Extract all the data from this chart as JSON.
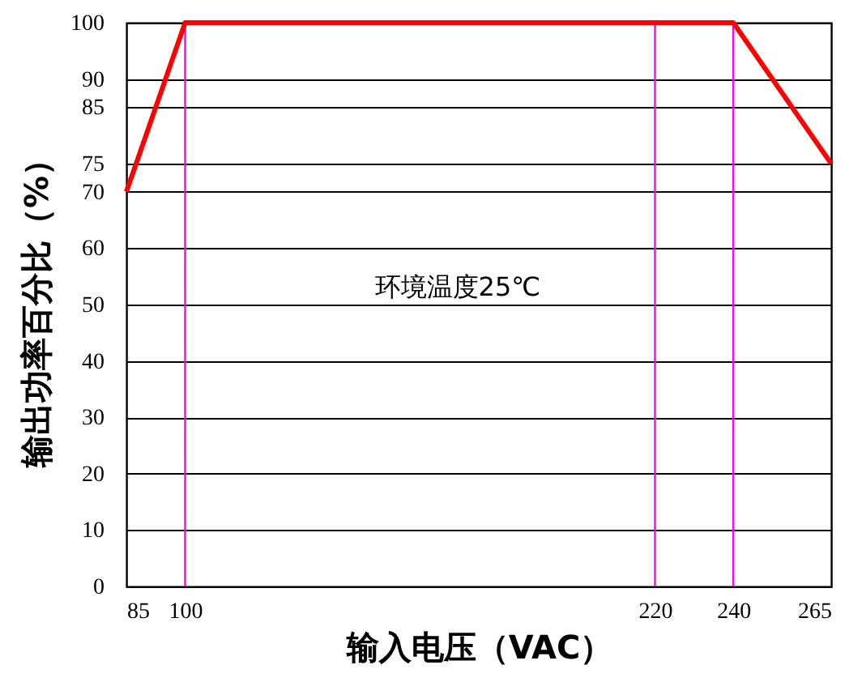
{
  "chart_data": {
    "type": "line",
    "xlabel": "输入电压（VAC）",
    "ylabel": "输出功率百分比（%）",
    "x": [
      85,
      100,
      240,
      265
    ],
    "series": [
      {
        "color": "#ff0000",
        "values": [
          70,
          100,
          100,
          75
        ]
      }
    ],
    "xlim": [
      85,
      265
    ],
    "xticks": [
      85,
      100,
      220,
      240,
      265
    ],
    "ylim": [
      0,
      100
    ],
    "yticks": [
      0,
      10,
      20,
      30,
      40,
      50,
      60,
      70,
      75,
      85,
      90,
      100
    ],
    "grid": "y",
    "ref_lines": [
      {
        "axis": "x",
        "value": 100,
        "color": "#ff00ff"
      },
      {
        "axis": "x",
        "value": 220,
        "color": "#ff00ff"
      },
      {
        "axis": "x",
        "value": 240,
        "color": "#ff00ff"
      }
    ],
    "annotations": [
      "环境温度25℃"
    ]
  }
}
